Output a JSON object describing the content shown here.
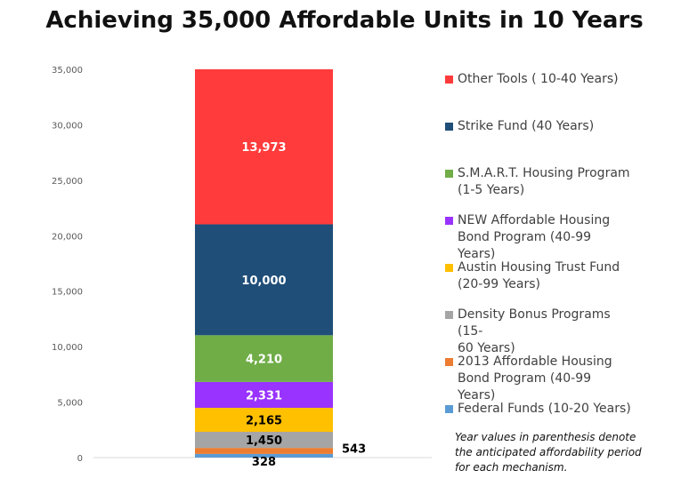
{
  "chart_data": {
    "type": "bar",
    "stacked": true,
    "title": "Achieving 35,000 Affordable Units in 10 Years",
    "ylim": [
      0,
      35000
    ],
    "yticks": [
      "0",
      "5,000",
      "10,000",
      "15,000",
      "20,000",
      "25,000",
      "30,000",
      "35,000"
    ],
    "grid": false,
    "legend_position": "right",
    "series": [
      {
        "name": "Federal Funds (10-20 Years)",
        "value": 328,
        "label": "328",
        "color": "#5b9bd5"
      },
      {
        "name": "2013 Affordable Housing Bond Program (40-99 Years)",
        "value": 543,
        "label": "543",
        "color": "#ed7d31"
      },
      {
        "name": "Density Bonus Programs (15-60 Years)",
        "value": 1450,
        "label": "1,450",
        "color": "#a5a5a5"
      },
      {
        "name": "Austin Housing Trust Fund (20-99 Years)",
        "value": 2165,
        "label": "2,165",
        "color": "#ffc000"
      },
      {
        "name": "NEW Affordable Housing Bond Program (40-99 Years)",
        "value": 2331,
        "label": "2,331",
        "color": "#9933ff"
      },
      {
        "name": "S.M.A.R.T. Housing Program (1-5 Years)",
        "value": 4210,
        "label": "4,210",
        "color": "#70ad47"
      },
      {
        "name": "Strike Fund (40 Years)",
        "value": 10000,
        "label": "10,000",
        "color": "#1f4e79"
      },
      {
        "name": "Other Tools ( 10-40 Years)",
        "value": 13973,
        "label": "13,973",
        "color": "#ff3b3b"
      }
    ],
    "legend": [
      {
        "label_lines": [
          "Other Tools ( 10-40 Years)"
        ],
        "color": "#ff3b3b"
      },
      {
        "label_lines": [
          "Strike Fund (40 Years)"
        ],
        "color": "#1f4e79"
      },
      {
        "label_lines": [
          "S.M.A.R.T. Housing Program",
          "(1-5 Years)"
        ],
        "color": "#70ad47"
      },
      {
        "label_lines": [
          "NEW Affordable Housing",
          "Bond Program (40-99 Years)"
        ],
        "color": "#9933ff"
      },
      {
        "label_lines": [
          "Austin Housing Trust Fund",
          "(20-99 Years)"
        ],
        "color": "#ffc000"
      },
      {
        "label_lines": [
          "Density Bonus Programs (15-",
          "60 Years)"
        ],
        "color": "#a5a5a5"
      },
      {
        "label_lines": [
          "2013 Affordable Housing",
          "Bond Program (40-99 Years)"
        ],
        "color": "#ed7d31"
      },
      {
        "label_lines": [
          "Federal Funds (10-20 Years)"
        ],
        "color": "#5b9bd5"
      }
    ],
    "note": "Year values in parenthesis denote the anticipated affordability period for each mechanism."
  }
}
